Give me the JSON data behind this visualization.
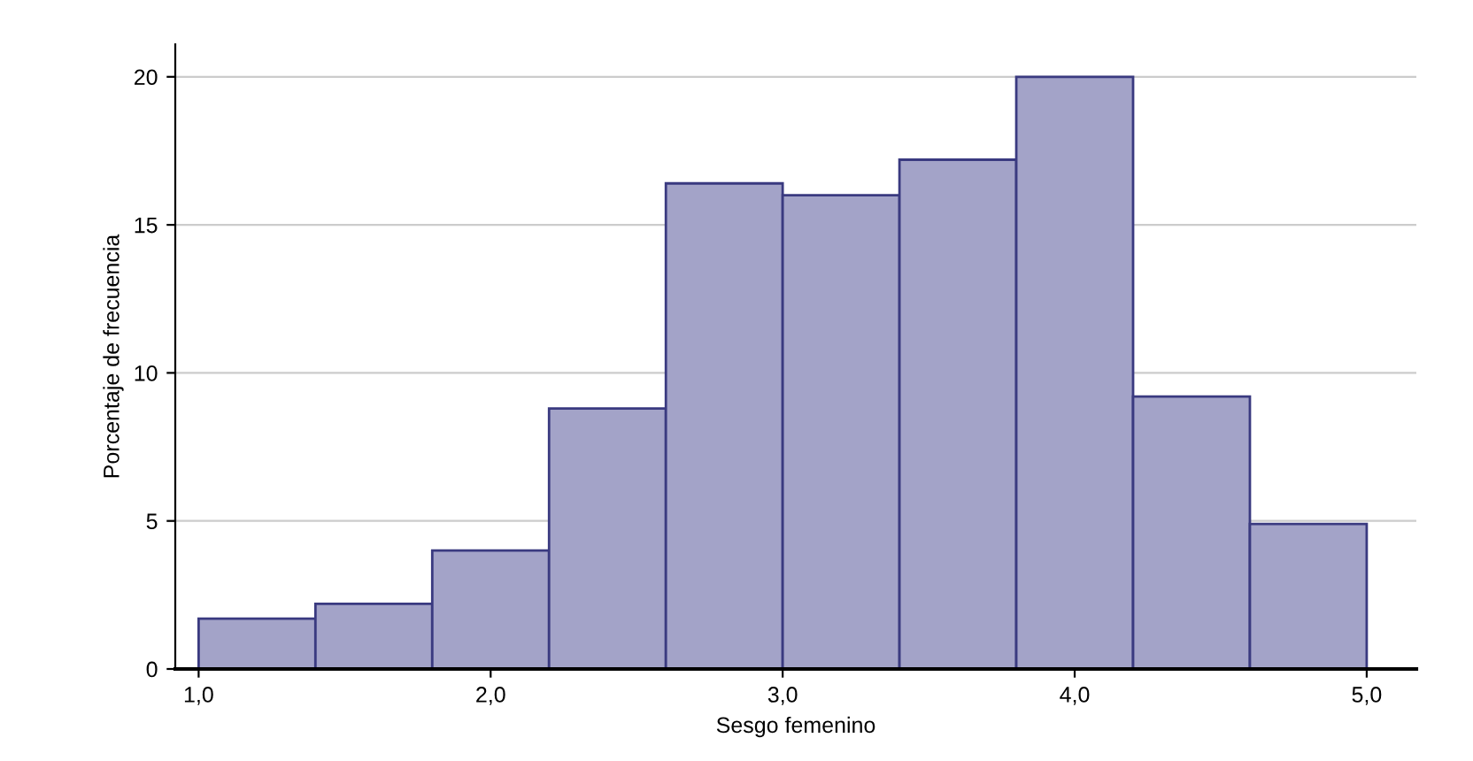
{
  "chart_data": {
    "type": "histogram",
    "xlabel": "Sesgo femenino",
    "ylabel": "Porcentaje de frecuencia",
    "bins": [
      1.0,
      1.4,
      1.8,
      2.2,
      2.6,
      3.0,
      3.4,
      3.8,
      4.2,
      4.6,
      5.0
    ],
    "values": [
      1.7,
      2.2,
      4.0,
      8.8,
      16.4,
      16.0,
      17.2,
      20.0,
      9.2,
      4.9
    ],
    "color": "#a3a3c8",
    "xlim": [
      0.92,
      5.17
    ],
    "ylim": [
      0,
      21.1
    ],
    "xticks": [
      {
        "value": 1,
        "label": "1,0"
      },
      {
        "value": 2,
        "label": "2,0"
      },
      {
        "value": 3,
        "label": "3,0"
      },
      {
        "value": 4,
        "label": "4,0"
      },
      {
        "value": 5,
        "label": "5,0"
      }
    ],
    "yticks": [
      0,
      5,
      10,
      15,
      20
    ],
    "grid": "y"
  }
}
